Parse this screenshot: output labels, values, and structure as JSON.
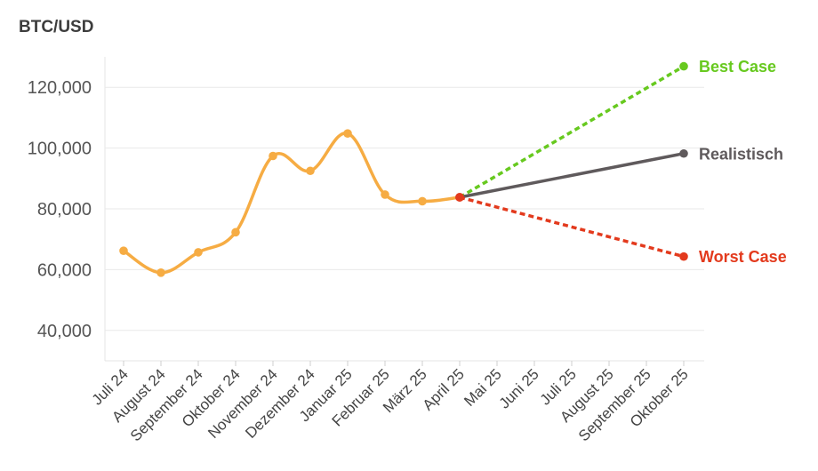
{
  "chart_data": {
    "type": "line",
    "title": "BTC/USD",
    "xlabel": "",
    "ylabel": "",
    "categories": [
      "Juli 24",
      "August 24",
      "September 24",
      "Oktober 24",
      "November 24",
      "Dezember 24",
      "Januar 25",
      "Februar 25",
      "März 25",
      "April 25",
      "Mai 25",
      "Juni 25",
      "Juli 25",
      "August 25",
      "September 25",
      "Oktober 25"
    ],
    "ylim": [
      30000,
      130000
    ],
    "yticks": [
      40000,
      60000,
      80000,
      100000,
      120000
    ],
    "ytick_labels": [
      "40,000",
      "60,000",
      "80,000",
      "100,000",
      "120,000"
    ],
    "grid": true,
    "series": [
      {
        "name": "",
        "role": "history",
        "color": "#f6ac43",
        "style": "smooth-solid",
        "values": [
          66200,
          59000,
          65700,
          72300,
          97400,
          92500,
          104800,
          84700,
          82500,
          83800,
          null,
          null,
          null,
          null,
          null,
          null
        ]
      },
      {
        "name": "Best Case",
        "role": "scenario",
        "color": "#67c91f",
        "style": "dashed",
        "values": [
          null,
          null,
          null,
          null,
          null,
          null,
          null,
          null,
          null,
          83800,
          null,
          null,
          null,
          null,
          null,
          126900
        ]
      },
      {
        "name": "Realistisch",
        "role": "scenario",
        "color": "#5f5a5c",
        "style": "solid",
        "values": [
          null,
          null,
          null,
          null,
          null,
          null,
          null,
          null,
          null,
          83800,
          null,
          null,
          null,
          null,
          null,
          98200
        ]
      },
      {
        "name": "Worst Case",
        "role": "scenario",
        "color": "#e33a1d",
        "style": "dashed",
        "values": [
          null,
          null,
          null,
          null,
          null,
          null,
          null,
          null,
          null,
          83800,
          null,
          null,
          null,
          null,
          null,
          64300
        ]
      }
    ],
    "split_point_color": "#e33a1d"
  }
}
